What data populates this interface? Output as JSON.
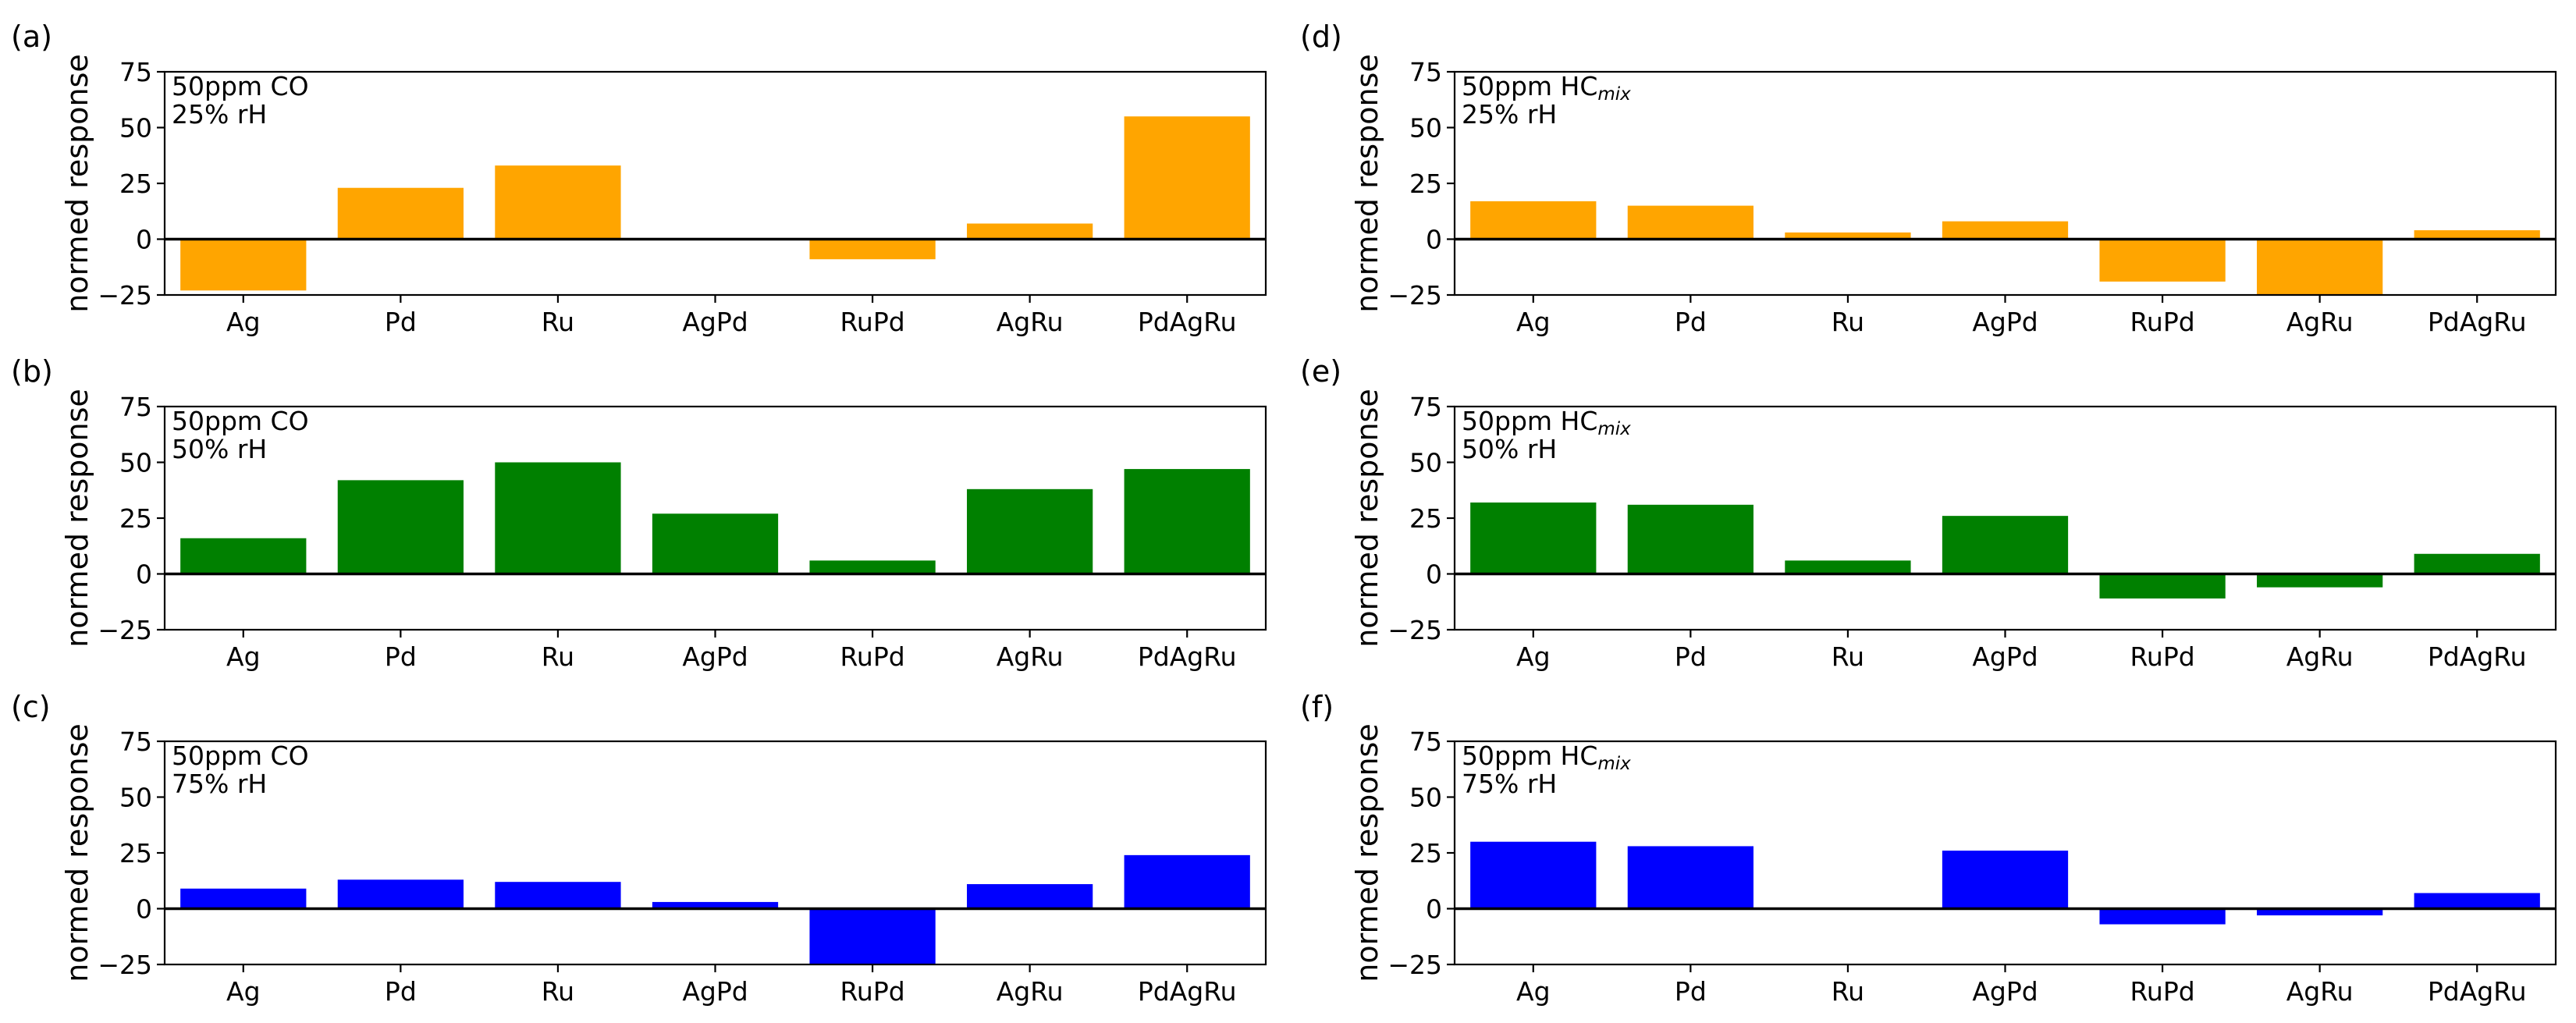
{
  "chart_data": [
    {
      "type": "bar",
      "panel_label": "(a)",
      "title_line1": "50ppm CO",
      "title_line2": "25% rH",
      "ylabel": "normed response",
      "ylim": [
        -25,
        75
      ],
      "yticks": [
        "75",
        "50",
        "25",
        "0",
        "−25"
      ],
      "categories": [
        "Ag",
        "Pd",
        "Ru",
        "AgPd",
        "RuPd",
        "AgRu",
        "PdAgRu"
      ],
      "values": [
        -23,
        23,
        33,
        0,
        -9,
        7,
        55
      ],
      "color": "#ffa500"
    },
    {
      "type": "bar",
      "panel_label": "(b)",
      "title_line1": "50ppm CO",
      "title_line2": "50% rH",
      "ylabel": "normed response",
      "ylim": [
        -25,
        75
      ],
      "yticks": [
        "75",
        "50",
        "25",
        "0",
        "−25"
      ],
      "categories": [
        "Ag",
        "Pd",
        "Ru",
        "AgPd",
        "RuPd",
        "AgRu",
        "PdAgRu"
      ],
      "values": [
        16,
        42,
        50,
        27,
        6,
        38,
        47
      ],
      "color": "#008000"
    },
    {
      "type": "bar",
      "panel_label": "(c)",
      "title_line1": "50ppm CO",
      "title_line2": "75% rH",
      "ylabel": "normed response",
      "ylim": [
        -25,
        75
      ],
      "yticks": [
        "75",
        "50",
        "25",
        "0",
        "−25"
      ],
      "categories": [
        "Ag",
        "Pd",
        "Ru",
        "AgPd",
        "RuPd",
        "AgRu",
        "PdAgRu"
      ],
      "values": [
        9,
        13,
        12,
        3,
        -25,
        11,
        24
      ],
      "color": "#0000ff"
    },
    {
      "type": "bar",
      "panel_label": "(d)",
      "title_line1": "50ppm HC",
      "title_sub": "mix",
      "title_line2": "25% rH",
      "ylabel": "normed response",
      "ylim": [
        -25,
        75
      ],
      "yticks": [
        "75",
        "50",
        "25",
        "0",
        "−25"
      ],
      "categories": [
        "Ag",
        "Pd",
        "Ru",
        "AgPd",
        "RuPd",
        "AgRu",
        "PdAgRu"
      ],
      "values": [
        17,
        15,
        3,
        8,
        -19,
        -25,
        4
      ],
      "color": "#ffa500"
    },
    {
      "type": "bar",
      "panel_label": "(e)",
      "title_line1": "50ppm HC",
      "title_sub": "mix",
      "title_line2": "50% rH",
      "ylabel": "normed response",
      "ylim": [
        -25,
        75
      ],
      "yticks": [
        "75",
        "50",
        "25",
        "0",
        "−25"
      ],
      "categories": [
        "Ag",
        "Pd",
        "Ru",
        "AgPd",
        "RuPd",
        "AgRu",
        "PdAgRu"
      ],
      "values": [
        32,
        31,
        6,
        26,
        -11,
        -6,
        9
      ],
      "color": "#008000"
    },
    {
      "type": "bar",
      "panel_label": "(f)",
      "title_line1": "50ppm HC",
      "title_sub": "mix",
      "title_line2": "75% rH",
      "ylabel": "normed response",
      "ylim": [
        -25,
        75
      ],
      "yticks": [
        "75",
        "50",
        "25",
        "0",
        "−25"
      ],
      "categories": [
        "Ag",
        "Pd",
        "Ru",
        "AgPd",
        "RuPd",
        "AgRu",
        "PdAgRu"
      ],
      "values": [
        30,
        28,
        0,
        26,
        -7,
        -3,
        7
      ],
      "color": "#0000ff"
    }
  ]
}
